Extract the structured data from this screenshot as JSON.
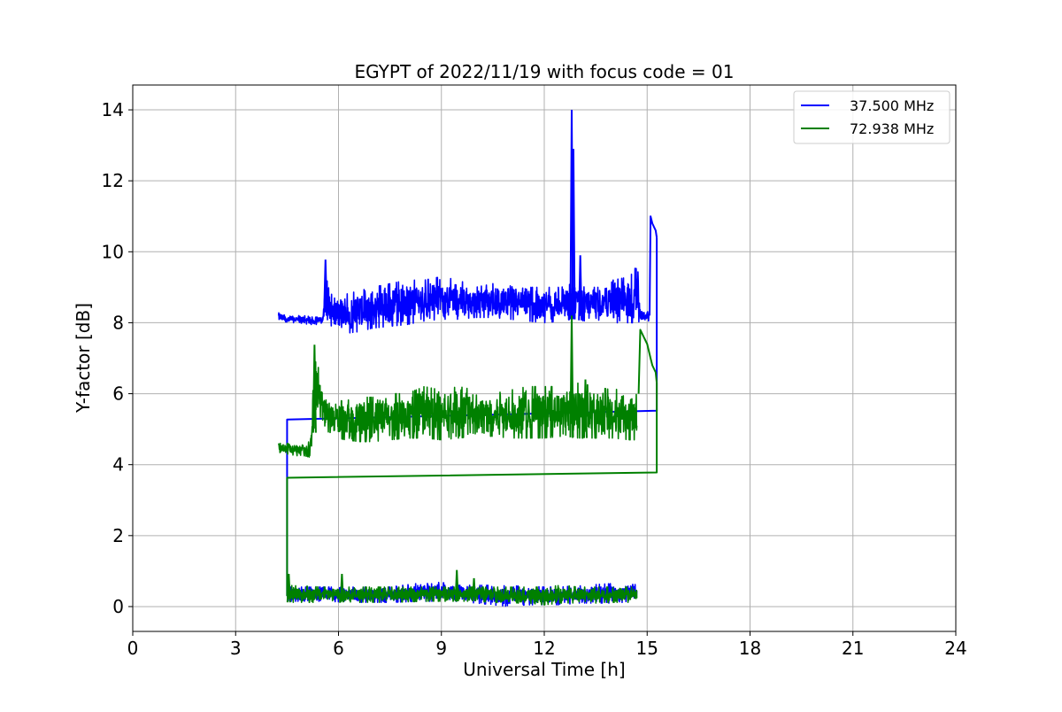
{
  "chart_data": {
    "type": "line",
    "title": "EGYPT of 2022/11/19 with focus code = 01",
    "xlabel": "Universal Time [h]",
    "ylabel": "Y-factor [dB]",
    "xlim": [
      0,
      24
    ],
    "ylim": [
      -0.7,
      14.7
    ],
    "xticks": [
      0,
      3,
      6,
      9,
      12,
      15,
      18,
      21,
      24
    ],
    "yticks": [
      0,
      2,
      4,
      6,
      8,
      10,
      12,
      14
    ],
    "grid": true,
    "legend_position": "top-right",
    "series": [
      {
        "name": "37.500 MHz",
        "color": "#0000ff",
        "segments": [
          {
            "kind": "noise",
            "x": [
              4.25,
              4.45,
              4.7,
              5.0,
              5.3,
              5.55,
              5.62,
              5.7,
              5.9,
              6.2,
              6.6,
              7.0,
              7.5,
              8.0,
              8.5,
              9.0,
              9.5,
              10.0,
              10.5,
              11.0,
              11.5,
              12.0,
              12.5,
              12.8,
              13.2,
              13.6,
              14.0,
              14.5,
              14.75,
              14.8,
              15.05
            ],
            "lo": [
              8.05,
              8.0,
              8.0,
              7.95,
              7.95,
              7.95,
              8.3,
              8.0,
              7.8,
              7.7,
              7.75,
              7.85,
              7.9,
              7.95,
              8.05,
              8.1,
              8.1,
              8.15,
              8.15,
              8.1,
              8.05,
              8.0,
              8.05,
              8.1,
              8.05,
              8.0,
              8.0,
              8.0,
              8.0,
              8.05,
              8.05
            ],
            "hi": [
              8.3,
              8.2,
              8.2,
              8.2,
              8.15,
              8.2,
              9.8,
              9.0,
              8.7,
              8.8,
              8.9,
              9.0,
              9.1,
              9.2,
              9.2,
              9.3,
              9.2,
              9.0,
              9.1,
              9.1,
              9.0,
              9.0,
              9.0,
              9.1,
              9.0,
              9.0,
              9.2,
              9.3,
              9.7,
              8.4,
              8.35
            ],
            "spikes": [
              [
                5.62,
                9.78
              ],
              [
                12.8,
                14.0
              ],
              [
                12.85,
                12.9
              ],
              [
                13.05,
                9.9
              ]
            ]
          },
          {
            "kind": "line",
            "x": [
              15.07,
              15.1,
              15.15,
              15.2,
              15.25,
              15.28
            ],
            "y": [
              8.2,
              11.0,
              10.8,
              10.7,
              10.6,
              10.4
            ]
          },
          {
            "kind": "line",
            "x": [
              15.28,
              15.28,
              4.5,
              4.5
            ],
            "y": [
              10.4,
              5.52,
              5.27,
              0.3
            ]
          },
          {
            "kind": "noise",
            "x": [
              4.5,
              5.5,
              6.5,
              7.5,
              8.5,
              9.0,
              9.5,
              10.0,
              10.5,
              11.0,
              11.5,
              12.0,
              12.5,
              13.0,
              13.5,
              14.0,
              14.7
            ],
            "lo": [
              0.15,
              0.15,
              0.12,
              0.12,
              0.15,
              0.15,
              0.15,
              0.1,
              0.05,
              0.0,
              0.05,
              0.05,
              0.05,
              0.1,
              0.1,
              0.1,
              0.15
            ],
            "hi": [
              0.55,
              0.55,
              0.55,
              0.55,
              0.68,
              0.68,
              0.6,
              0.6,
              0.6,
              0.58,
              0.58,
              0.55,
              0.55,
              0.6,
              0.62,
              0.65,
              0.62
            ],
            "spikes": []
          }
        ]
      },
      {
        "name": "72.938 MHz",
        "color": "#008000",
        "segments": [
          {
            "kind": "noise",
            "x": [
              4.25,
              4.5,
              4.8,
              5.0,
              5.2,
              5.3,
              5.4,
              5.55,
              5.8,
              6.2,
              6.6,
              7.0,
              7.5,
              8.0,
              8.5,
              9.0,
              9.5,
              10.0,
              10.5,
              11.0,
              11.5,
              12.0,
              12.5,
              13.0,
              13.5,
              14.0,
              14.5,
              14.7
            ],
            "lo": [
              4.35,
              4.3,
              4.25,
              4.25,
              4.2,
              4.9,
              5.6,
              5.05,
              4.8,
              4.7,
              4.65,
              4.65,
              4.7,
              4.75,
              4.75,
              4.7,
              4.75,
              4.8,
              4.8,
              4.75,
              4.75,
              4.75,
              4.8,
              4.75,
              4.75,
              4.75,
              4.7,
              4.7
            ],
            "hi": [
              4.6,
              4.6,
              4.55,
              4.6,
              4.75,
              7.4,
              6.8,
              6.0,
              5.8,
              5.8,
              5.9,
              5.9,
              6.0,
              6.0,
              6.2,
              6.1,
              6.2,
              6.1,
              6.0,
              6.1,
              6.2,
              6.2,
              6.2,
              6.3,
              6.2,
              6.1,
              6.2,
              6.2
            ],
            "spikes": [
              [
                5.3,
                7.38
              ],
              [
                12.8,
                8.2
              ],
              [
                13.2,
                6.4
              ]
            ]
          },
          {
            "kind": "line",
            "x": [
              14.75,
              14.8,
              14.9,
              15.0,
              15.1,
              15.15,
              15.2,
              15.25,
              15.28
            ],
            "y": [
              6.0,
              7.8,
              7.6,
              7.4,
              7.0,
              6.8,
              6.7,
              6.6,
              6.3
            ]
          },
          {
            "kind": "line",
            "x": [
              15.28,
              15.28,
              4.5,
              4.5
            ],
            "y": [
              6.3,
              3.78,
              3.63,
              0.3
            ]
          },
          {
            "kind": "noise",
            "x": [
              4.5,
              5.5,
              6.5,
              7.5,
              8.5,
              9.0,
              9.5,
              10.0,
              10.5,
              11.0,
              11.5,
              12.0,
              12.5,
              13.0,
              13.5,
              14.0,
              14.7
            ],
            "lo": [
              0.12,
              0.12,
              0.12,
              0.12,
              0.15,
              0.15,
              0.15,
              0.15,
              0.12,
              0.1,
              0.1,
              0.05,
              0.1,
              0.1,
              0.1,
              0.12,
              0.12
            ],
            "hi": [
              0.6,
              0.55,
              0.55,
              0.55,
              0.55,
              0.55,
              0.55,
              0.55,
              0.55,
              0.55,
              0.55,
              0.55,
              0.6,
              0.55,
              0.55,
              0.55,
              0.55
            ],
            "spikes": [
              [
                4.55,
                0.92
              ],
              [
                6.1,
                0.92
              ],
              [
                9.45,
                1.03
              ],
              [
                9.95,
                0.8
              ]
            ]
          }
        ]
      }
    ]
  }
}
